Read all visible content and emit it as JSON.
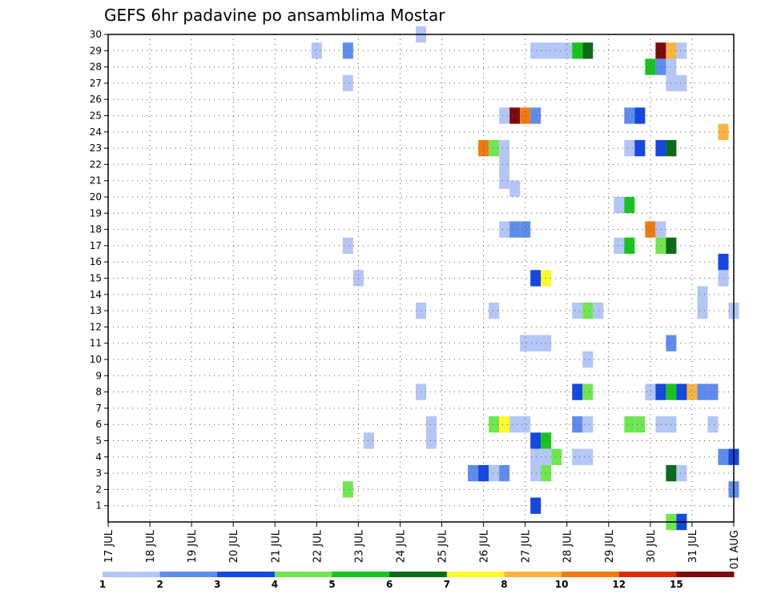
{
  "chart_data": {
    "type": "heatmap",
    "title": "GEFS 6hr padavine po ansamblima Mostar",
    "y_ticks": [
      "1",
      "2",
      "3",
      "4",
      "5",
      "6",
      "7",
      "8",
      "9",
      "10",
      "11",
      "12",
      "13",
      "14",
      "15",
      "16",
      "17",
      "18",
      "19",
      "20",
      "21",
      "22",
      "23",
      "24",
      "25",
      "26",
      "27",
      "28",
      "29",
      "30"
    ],
    "x_ticks": [
      "17 JUL",
      "18 JUL",
      "19 JUL",
      "20 JUL",
      "21 JUL",
      "22 JUL",
      "23 JUL",
      "24 JUL",
      "25 JUL",
      "26 JUL",
      "27 JUL",
      "28 JUL",
      "29 JUL",
      "30 JUL",
      "31 JUL",
      "01 AUG"
    ],
    "x_range": [
      0,
      60
    ],
    "y_range": [
      0,
      30
    ],
    "grid": true,
    "colorbar": {
      "levels": [
        "1",
        "2",
        "3",
        "4",
        "5",
        "6",
        "7",
        "8",
        "10",
        "12",
        "15",
        "20"
      ],
      "colors": [
        "#b3c6f5",
        "#5f8cec",
        "#1448e0",
        "#6fe650",
        "#19c31f",
        "#0a6b1a",
        "#fff82a",
        "#fdb340",
        "#f07a10",
        "#da2a0e",
        "#7d0a0a"
      ]
    },
    "cells": [
      {
        "x": 20,
        "y": 29,
        "v": 1
      },
      {
        "x": 23,
        "y": 29,
        "v": 2
      },
      {
        "x": 41,
        "y": 29,
        "v": 1
      },
      {
        "x": 42,
        "y": 29,
        "v": 1
      },
      {
        "x": 43,
        "y": 29,
        "v": 1
      },
      {
        "x": 44,
        "y": 29,
        "v": 1
      },
      {
        "x": 45,
        "y": 29,
        "v": 5
      },
      {
        "x": 46,
        "y": 29,
        "v": 6
      },
      {
        "x": 53,
        "y": 29,
        "v": 15
      },
      {
        "x": 54,
        "y": 29,
        "v": 8
      },
      {
        "x": 55,
        "y": 29,
        "v": 1
      },
      {
        "x": 30,
        "y": 30,
        "v": 1
      },
      {
        "x": 52,
        "y": 28,
        "v": 5
      },
      {
        "x": 53,
        "y": 28,
        "v": 2
      },
      {
        "x": 54,
        "y": 28,
        "v": 1
      },
      {
        "x": 23,
        "y": 27,
        "v": 1
      },
      {
        "x": 54,
        "y": 27,
        "v": 1
      },
      {
        "x": 55,
        "y": 27,
        "v": 1
      },
      {
        "x": 38,
        "y": 25,
        "v": 1
      },
      {
        "x": 39,
        "y": 25,
        "v": 20
      },
      {
        "x": 40,
        "y": 25,
        "v": 10
      },
      {
        "x": 41,
        "y": 25,
        "v": 2
      },
      {
        "x": 50,
        "y": 25,
        "v": 2
      },
      {
        "x": 51,
        "y": 25,
        "v": 3
      },
      {
        "x": 59,
        "y": 24,
        "v": 8
      },
      {
        "x": 36,
        "y": 23,
        "v": 10
      },
      {
        "x": 37,
        "y": 23,
        "v": 4
      },
      {
        "x": 38,
        "y": 23,
        "v": 1
      },
      {
        "x": 50,
        "y": 23,
        "v": 1
      },
      {
        "x": 51,
        "y": 23,
        "v": 3
      },
      {
        "x": 53,
        "y": 23,
        "v": 3
      },
      {
        "x": 54,
        "y": 23,
        "v": 6
      },
      {
        "x": 38,
        "y": 22,
        "v": 1
      },
      {
        "x": 38,
        "y": 21,
        "v": 1
      },
      {
        "x": 39,
        "y": 20.5,
        "v": 1
      },
      {
        "x": 49,
        "y": 19.5,
        "v": 1
      },
      {
        "x": 50,
        "y": 19.5,
        "v": 5
      },
      {
        "x": 38,
        "y": 18,
        "v": 1
      },
      {
        "x": 39,
        "y": 18,
        "v": 2
      },
      {
        "x": 40,
        "y": 18,
        "v": 2
      },
      {
        "x": 52,
        "y": 18,
        "v": 10
      },
      {
        "x": 53,
        "y": 18,
        "v": 1
      },
      {
        "x": 23,
        "y": 17,
        "v": 1
      },
      {
        "x": 49,
        "y": 17,
        "v": 1
      },
      {
        "x": 50,
        "y": 17,
        "v": 5
      },
      {
        "x": 53,
        "y": 17,
        "v": 4
      },
      {
        "x": 54,
        "y": 17,
        "v": 6
      },
      {
        "x": 59,
        "y": 16,
        "v": 3
      },
      {
        "x": 24,
        "y": 15,
        "v": 1
      },
      {
        "x": 41,
        "y": 15,
        "v": 3
      },
      {
        "x": 42,
        "y": 15,
        "v": 7
      },
      {
        "x": 59,
        "y": 15,
        "v": 1
      },
      {
        "x": 57,
        "y": 14,
        "v": 1
      },
      {
        "x": 57,
        "y": 13,
        "v": 1
      },
      {
        "x": 30,
        "y": 13,
        "v": 1
      },
      {
        "x": 37,
        "y": 13,
        "v": 1
      },
      {
        "x": 45,
        "y": 13,
        "v": 1
      },
      {
        "x": 46,
        "y": 13,
        "v": 4
      },
      {
        "x": 47,
        "y": 13,
        "v": 1
      },
      {
        "x": 60,
        "y": 13,
        "v": 1
      },
      {
        "x": 40,
        "y": 11,
        "v": 1
      },
      {
        "x": 41,
        "y": 11,
        "v": 1
      },
      {
        "x": 42,
        "y": 11,
        "v": 1
      },
      {
        "x": 54,
        "y": 11,
        "v": 2
      },
      {
        "x": 46,
        "y": 10,
        "v": 1
      },
      {
        "x": 30,
        "y": 8,
        "v": 1
      },
      {
        "x": 45,
        "y": 8,
        "v": 3
      },
      {
        "x": 46,
        "y": 8,
        "v": 4
      },
      {
        "x": 52,
        "y": 8,
        "v": 1
      },
      {
        "x": 53,
        "y": 8,
        "v": 3
      },
      {
        "x": 54,
        "y": 8,
        "v": 5
      },
      {
        "x": 55,
        "y": 8,
        "v": 3
      },
      {
        "x": 56,
        "y": 8,
        "v": 8
      },
      {
        "x": 57,
        "y": 8,
        "v": 2
      },
      {
        "x": 58,
        "y": 8,
        "v": 2
      },
      {
        "x": 31,
        "y": 6,
        "v": 1
      },
      {
        "x": 37,
        "y": 6,
        "v": 4
      },
      {
        "x": 38,
        "y": 6,
        "v": 7
      },
      {
        "x": 39,
        "y": 6,
        "v": 1
      },
      {
        "x": 40,
        "y": 6,
        "v": 1
      },
      {
        "x": 45,
        "y": 6,
        "v": 2
      },
      {
        "x": 46,
        "y": 6,
        "v": 1
      },
      {
        "x": 50,
        "y": 6,
        "v": 4
      },
      {
        "x": 51,
        "y": 6,
        "v": 4
      },
      {
        "x": 53,
        "y": 6,
        "v": 1
      },
      {
        "x": 54,
        "y": 6,
        "v": 1
      },
      {
        "x": 58,
        "y": 6,
        "v": 1
      },
      {
        "x": 31,
        "y": 5,
        "v": 1
      },
      {
        "x": 25,
        "y": 5,
        "v": 1
      },
      {
        "x": 41,
        "y": 5,
        "v": 3
      },
      {
        "x": 42,
        "y": 5,
        "v": 5
      },
      {
        "x": 41,
        "y": 4,
        "v": 1
      },
      {
        "x": 42,
        "y": 4,
        "v": 1
      },
      {
        "x": 43,
        "y": 4,
        "v": 4
      },
      {
        "x": 45,
        "y": 4,
        "v": 1
      },
      {
        "x": 46,
        "y": 4,
        "v": 1
      },
      {
        "x": 59,
        "y": 4,
        "v": 2
      },
      {
        "x": 60,
        "y": 4,
        "v": 3
      },
      {
        "x": 35,
        "y": 3,
        "v": 2
      },
      {
        "x": 36,
        "y": 3,
        "v": 3
      },
      {
        "x": 37,
        "y": 3,
        "v": 1
      },
      {
        "x": 38,
        "y": 3,
        "v": 2
      },
      {
        "x": 41,
        "y": 3,
        "v": 1
      },
      {
        "x": 42,
        "y": 3,
        "v": 4
      },
      {
        "x": 54,
        "y": 3,
        "v": 6
      },
      {
        "x": 55,
        "y": 3,
        "v": 1
      },
      {
        "x": 23,
        "y": 2,
        "v": 4
      },
      {
        "x": 60,
        "y": 2,
        "v": 2
      },
      {
        "x": 41,
        "y": 1,
        "v": 3
      },
      {
        "x": 54,
        "y": 0,
        "v": 4
      },
      {
        "x": 55,
        "y": 0,
        "v": 3
      }
    ]
  }
}
